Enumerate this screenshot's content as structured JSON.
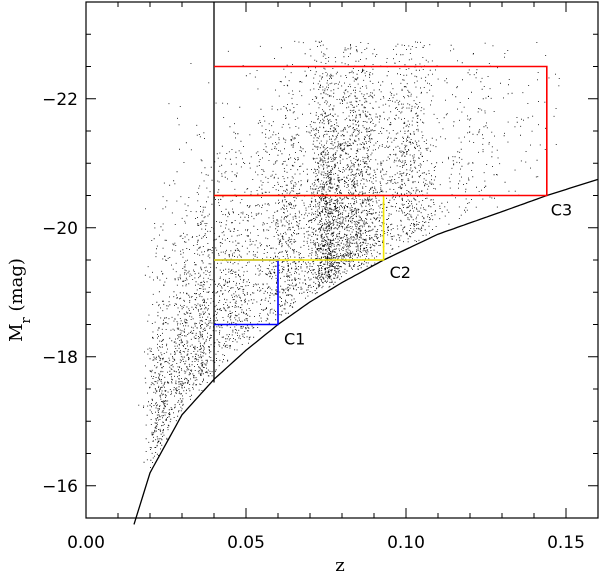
{
  "chart_data": {
    "type": "scatter",
    "title": "",
    "xlabel": "z",
    "ylabel": "M",
    "ylabel_subscript": "r",
    "ylabel_unit": "(mag)",
    "xlim": [
      0.0,
      0.16
    ],
    "ylim": [
      -15.5,
      -23.5
    ],
    "y_inverted": true,
    "grid": false,
    "x_ticks": [
      0.0,
      0.05,
      0.1,
      0.15
    ],
    "x_tick_labels": [
      "0.00",
      "0.05",
      "0.10",
      "0.15"
    ],
    "y_ticks": [
      -16,
      -18,
      -20,
      -22
    ],
    "y_tick_labels": [
      "−16",
      "−18",
      "−20",
      "−22"
    ],
    "series": [
      {
        "kind": "points",
        "description_density_bands_z": [
          {
            "z_center": 0.023,
            "z_width": 0.004,
            "weight": 0.5
          },
          {
            "z_center": 0.03,
            "z_width": 0.004,
            "weight": 0.5
          },
          {
            "z_center": 0.036,
            "z_width": 0.004,
            "weight": 0.45
          },
          {
            "z_center": 0.046,
            "z_width": 0.01,
            "weight": 0.9
          },
          {
            "z_center": 0.062,
            "z_width": 0.008,
            "weight": 1.0
          },
          {
            "z_center": 0.075,
            "z_width": 0.006,
            "weight": 1.8
          },
          {
            "z_center": 0.085,
            "z_width": 0.008,
            "weight": 1.6
          },
          {
            "z_center": 0.1,
            "z_width": 0.01,
            "weight": 1.1
          },
          {
            "z_center": 0.12,
            "z_width": 0.012,
            "weight": 0.25
          },
          {
            "z_center": 0.14,
            "z_width": 0.012,
            "weight": 0.08
          }
        ],
        "count": 14000
      },
      {
        "kind": "limit_curve",
        "label": "",
        "z_min": 0.015,
        "z_max": 0.16,
        "color": "#000000"
      }
    ],
    "vertical_line": {
      "z": 0.04,
      "mag_from": -17.6,
      "mag_to": -23.5,
      "color": "#000000"
    },
    "boxes": [
      {
        "label": "C1",
        "z_min": 0.04,
        "z_max": 0.06,
        "mag_faint": -18.5,
        "mag_bright": -19.5,
        "color": "#0000ff"
      },
      {
        "label": "C2",
        "z_min": 0.04,
        "z_max": 0.093,
        "mag_faint": -19.5,
        "mag_bright": -20.5,
        "color": "#f2e600"
      },
      {
        "label": "C3",
        "z_min": 0.04,
        "z_max": 0.144,
        "mag_faint": -20.5,
        "mag_bright": -22.5,
        "color": "#ff0000"
      }
    ]
  }
}
